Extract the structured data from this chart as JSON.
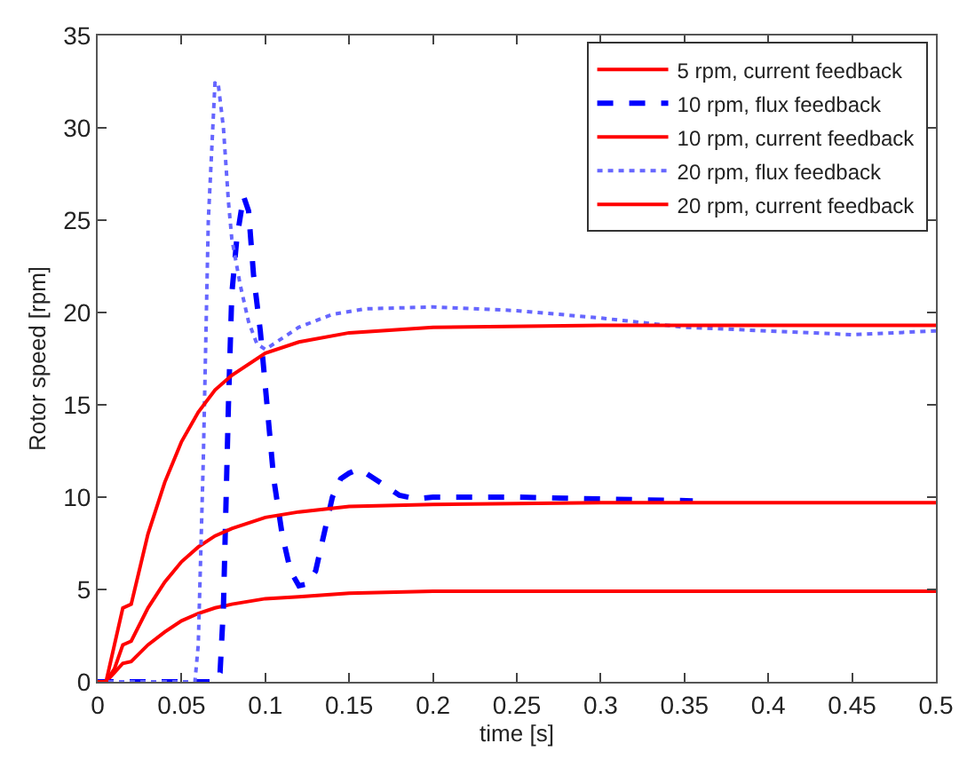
{
  "chart_data": {
    "type": "line",
    "xlabel": "time [s]",
    "ylabel": "Rotor speed [rpm]",
    "xlim": [
      0,
      0.5
    ],
    "ylim": [
      0,
      35
    ],
    "xticks": [
      0,
      0.05,
      0.1,
      0.15,
      0.2,
      0.25,
      0.3,
      0.35,
      0.4,
      0.45,
      0.5
    ],
    "yticks": [
      0,
      5,
      10,
      15,
      20,
      25,
      30,
      35
    ],
    "legend": "top right",
    "marker": "none",
    "series": [
      {
        "name": "5 rpm, current feedback",
        "color": "#ff0000",
        "line_style": "solid",
        "x": [
          0,
          0.005,
          0.01,
          0.015,
          0.02,
          0.03,
          0.04,
          0.05,
          0.06,
          0.07,
          0.08,
          0.1,
          0.12,
          0.15,
          0.2,
          0.3,
          0.4,
          0.5
        ],
        "values": [
          0,
          0,
          0.5,
          1,
          1.1,
          2,
          2.7,
          3.3,
          3.7,
          4.0,
          4.2,
          4.5,
          4.6,
          4.8,
          4.9,
          4.9,
          4.9,
          4.9
        ]
      },
      {
        "name": "10 rpm, flux feedback",
        "color": "#0000ff",
        "line_style": "dashed",
        "x": [
          0,
          0.07,
          0.073,
          0.075,
          0.078,
          0.08,
          0.083,
          0.087,
          0.09,
          0.093,
          0.097,
          0.1,
          0.105,
          0.11,
          0.115,
          0.12,
          0.125,
          0.13,
          0.135,
          0.14,
          0.145,
          0.15,
          0.155,
          0.16,
          0.17,
          0.18,
          0.19,
          0.2,
          0.25,
          0.3,
          0.355
        ],
        "values": [
          0,
          0,
          0.5,
          4,
          15,
          21,
          24,
          26.3,
          25.5,
          22,
          19,
          16,
          11,
          8,
          6,
          5.2,
          5.3,
          6,
          8,
          10,
          11,
          11.3,
          11.5,
          11.3,
          10.7,
          10.1,
          9.9,
          10,
          10,
          9.9,
          9.8
        ]
      },
      {
        "name": "10 rpm, current feedback",
        "color": "#ff0000",
        "line_style": "solid",
        "x": [
          0,
          0.005,
          0.01,
          0.015,
          0.02,
          0.03,
          0.04,
          0.05,
          0.06,
          0.07,
          0.08,
          0.1,
          0.12,
          0.15,
          0.2,
          0.3,
          0.4,
          0.5
        ],
        "values": [
          0,
          0,
          0.7,
          2,
          2.2,
          4,
          5.4,
          6.5,
          7.3,
          7.9,
          8.3,
          8.9,
          9.2,
          9.5,
          9.6,
          9.7,
          9.7,
          9.7
        ]
      },
      {
        "name": "20 rpm, flux feedback",
        "color": "#6666ff",
        "line_style": "dotted",
        "x": [
          0,
          0.058,
          0.06,
          0.063,
          0.066,
          0.07,
          0.072,
          0.075,
          0.078,
          0.08,
          0.085,
          0.09,
          0.095,
          0.1,
          0.11,
          0.12,
          0.14,
          0.16,
          0.2,
          0.25,
          0.3,
          0.35,
          0.4,
          0.45,
          0.5
        ],
        "values": [
          0,
          0,
          2,
          12,
          25,
          32.5,
          32.3,
          30,
          26,
          24,
          21.5,
          19.5,
          18.3,
          18,
          18.6,
          19.2,
          19.9,
          20.2,
          20.3,
          20.1,
          19.7,
          19.2,
          19,
          18.8,
          19.0
        ]
      },
      {
        "name": "20 rpm, current feedback",
        "color": "#ff0000",
        "line_style": "solid",
        "x": [
          0,
          0.005,
          0.01,
          0.015,
          0.02,
          0.03,
          0.04,
          0.05,
          0.06,
          0.07,
          0.08,
          0.1,
          0.12,
          0.15,
          0.2,
          0.3,
          0.4,
          0.5
        ],
        "values": [
          0,
          0,
          2,
          4,
          4.2,
          8,
          10.8,
          13,
          14.6,
          15.8,
          16.6,
          17.8,
          18.4,
          18.9,
          19.2,
          19.3,
          19.3,
          19.3
        ]
      }
    ]
  }
}
